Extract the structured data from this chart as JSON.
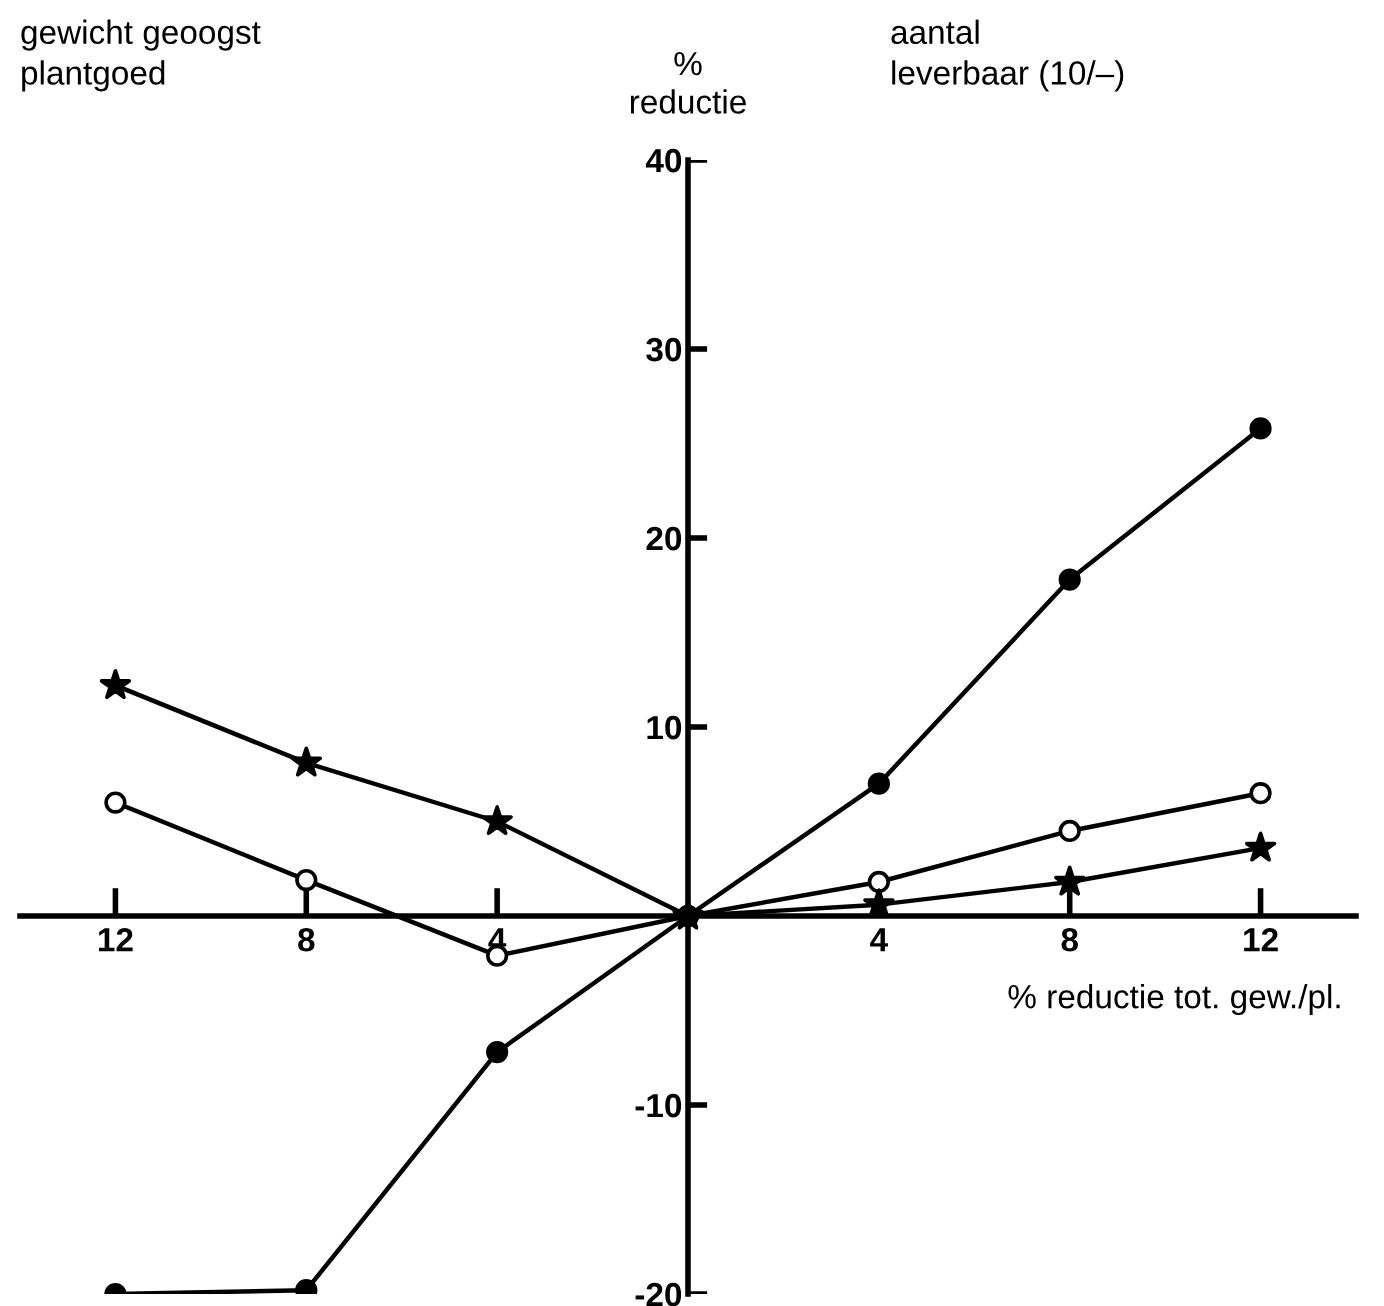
{
  "chart_data": {
    "type": "line",
    "ylabel": "%\nreductie",
    "xlabel": "% reductie tot. gew./pl.",
    "annotations": [
      "gewicht geoogst\nplantgoed",
      "aantal\nleverbaar (10/–)"
    ],
    "x": [
      -12,
      -8,
      -4,
      0,
      4,
      8,
      12
    ],
    "series": [
      {
        "color": "#000000",
        "marker": "circle",
        "values": [
          -20,
          -19.8,
          -7.2,
          0,
          7.0,
          17.8,
          25.8
        ]
      },
      {
        "color": "#000000",
        "marker": "circle",
        "colors": [
          "#ffffff",
          "#ffffff",
          "#ffffff",
          "#ffffff",
          "#ffffff",
          "#ffffff",
          "#ffffff"
        ],
        "values": [
          6.0,
          1.9,
          -2.1,
          0,
          1.8,
          4.5,
          6.5
        ]
      },
      {
        "color": "#000000",
        "marker": "star",
        "values": [
          12.2,
          8.1,
          5.0,
          0,
          0.6,
          1.8,
          3.6
        ]
      }
    ],
    "xlim": [
      -14,
      14
    ],
    "ylim": [
      -20,
      40
    ],
    "xticks": [
      {
        "value": -12,
        "label": "12"
      },
      {
        "value": -8,
        "label": "8"
      },
      {
        "value": -4,
        "label": "4"
      },
      4,
      8,
      12
    ],
    "yticks": [
      -20,
      -10,
      10,
      20,
      30,
      40
    ],
    "grid": false,
    "legend": false,
    "line_style": "solid"
  }
}
